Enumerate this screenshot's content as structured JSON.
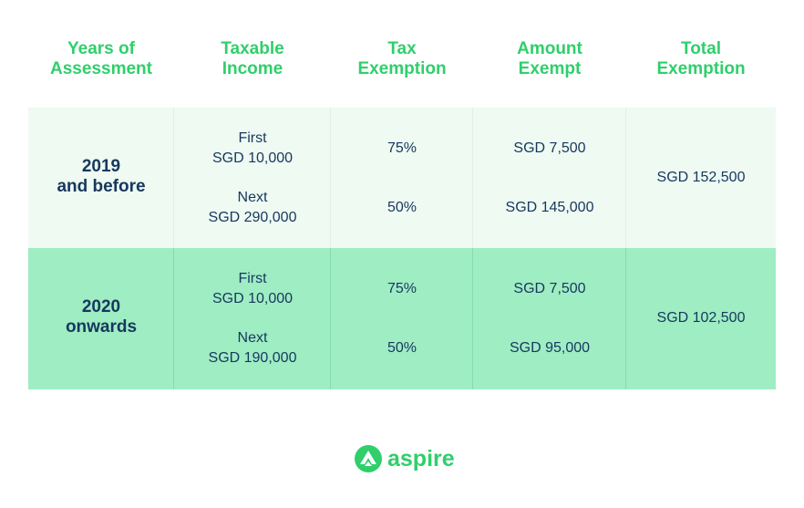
{
  "header": {
    "years": [
      "Years of",
      "Assessment"
    ],
    "taxable": [
      "Taxable",
      "Income"
    ],
    "exemption": [
      "Tax",
      "Exemption"
    ],
    "amount": [
      "Amount",
      "Exempt"
    ],
    "total": [
      "Total",
      "Exemption"
    ]
  },
  "rows": [
    {
      "year": [
        "2019",
        "and before"
      ],
      "income": [
        [
          "First",
          "SGD 10,000"
        ],
        [
          "Next",
          "SGD 290,000"
        ]
      ],
      "rates": [
        "75%",
        "50%"
      ],
      "amounts": [
        "SGD 7,500",
        "SGD 145,000"
      ],
      "total": "SGD 152,500"
    },
    {
      "year": [
        "2020",
        "onwards"
      ],
      "income": [
        [
          "First",
          "SGD 10,000"
        ],
        [
          "Next",
          "SGD 190,000"
        ]
      ],
      "rates": [
        "75%",
        "50%"
      ],
      "amounts": [
        "SGD 7,500",
        "SGD 95,000"
      ],
      "total": "SGD 102,500"
    }
  ],
  "logo": {
    "text": "aspire",
    "icon": "aspire-logo-icon"
  },
  "colors": {
    "accent": "#2fcf6b",
    "text": "#17375e",
    "row1_bg": "#eefaf2",
    "row2_bg": "#9eedc3"
  }
}
